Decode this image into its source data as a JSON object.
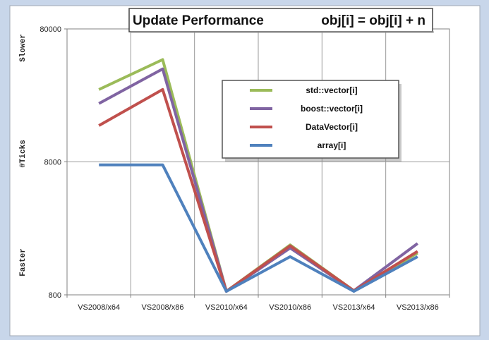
{
  "chart_data": {
    "type": "line",
    "title": "Update Performance",
    "subtitle": "obj[i] = obj[i] + n",
    "xlabel": "",
    "ylabel": "#Ticks",
    "ylabel_top": "Slower",
    "ylabel_bottom": "Faster",
    "yscale": "log",
    "ylim": [
      800,
      80000
    ],
    "yticks": [
      800,
      8000,
      80000
    ],
    "categories": [
      "VS2008/x64",
      "VS2008/x86",
      "VS2010/x64",
      "VS2010/x86",
      "VS2013/x64",
      "VS2013/x86"
    ],
    "grid": true,
    "legend_position": "upper-right (boxed)",
    "series": [
      {
        "name": "std::vector[i]",
        "color": "#9bbb59",
        "values": [
          28000,
          47000,
          850,
          1900,
          860,
          1650
        ]
      },
      {
        "name": "boost::vector[i]",
        "color": "#8064a2",
        "values": [
          22000,
          40000,
          850,
          1800,
          860,
          1950
        ]
      },
      {
        "name": "DataVector[i]",
        "color": "#c0504d",
        "values": [
          15000,
          28000,
          850,
          1870,
          860,
          1700
        ]
      },
      {
        "name": "array[i]",
        "color": "#4f81bd",
        "values": [
          7600,
          7600,
          850,
          1550,
          850,
          1550
        ]
      }
    ]
  }
}
